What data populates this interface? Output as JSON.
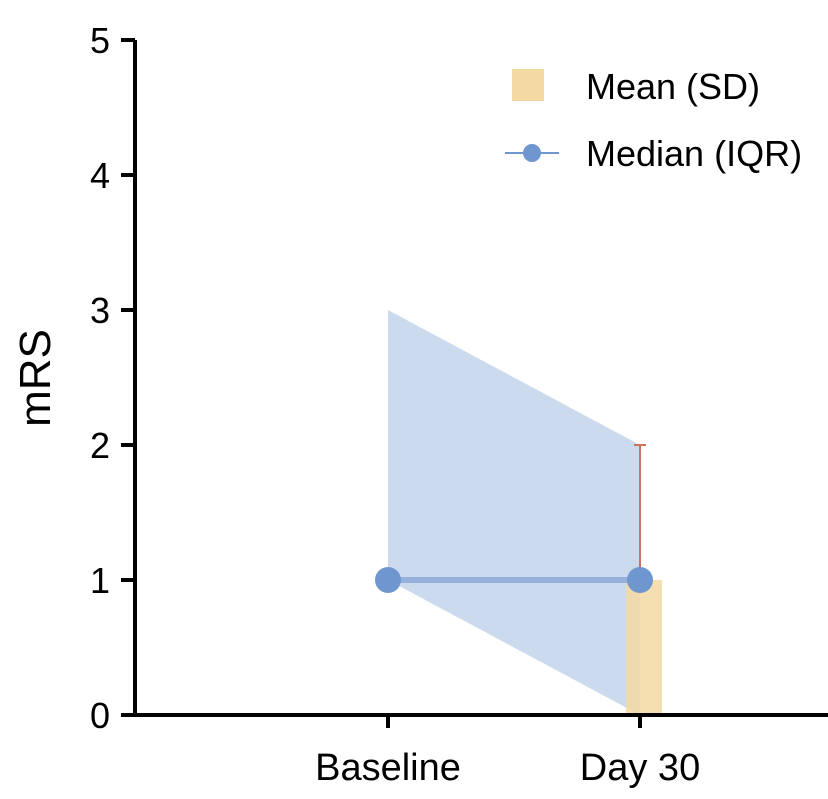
{
  "chart_data": {
    "type": "bar",
    "categories": [
      "Baseline",
      "Day 30"
    ],
    "ylabel": "mRS",
    "xlabel": "",
    "ylim": [
      0,
      5
    ],
    "yticks": [
      "0",
      "1",
      "2",
      "3",
      "4",
      "5"
    ],
    "series": [
      {
        "name": "Mean (SD)",
        "kind": "bar",
        "color": "#f3d9a2",
        "values": [
          null,
          1
        ],
        "sd": [
          null,
          1
        ],
        "error_color": "#c9745a"
      },
      {
        "name": "Median (IQR)",
        "kind": "line",
        "color": "#6f96cf",
        "band_color": "#c8d7ec",
        "values": [
          1,
          1
        ],
        "iqr_low": [
          1,
          0
        ],
        "iqr_high": [
          3,
          2
        ]
      }
    ],
    "legend": {
      "position": "top-right",
      "entries": [
        "Mean (SD)",
        "Median (IQR)"
      ]
    }
  }
}
